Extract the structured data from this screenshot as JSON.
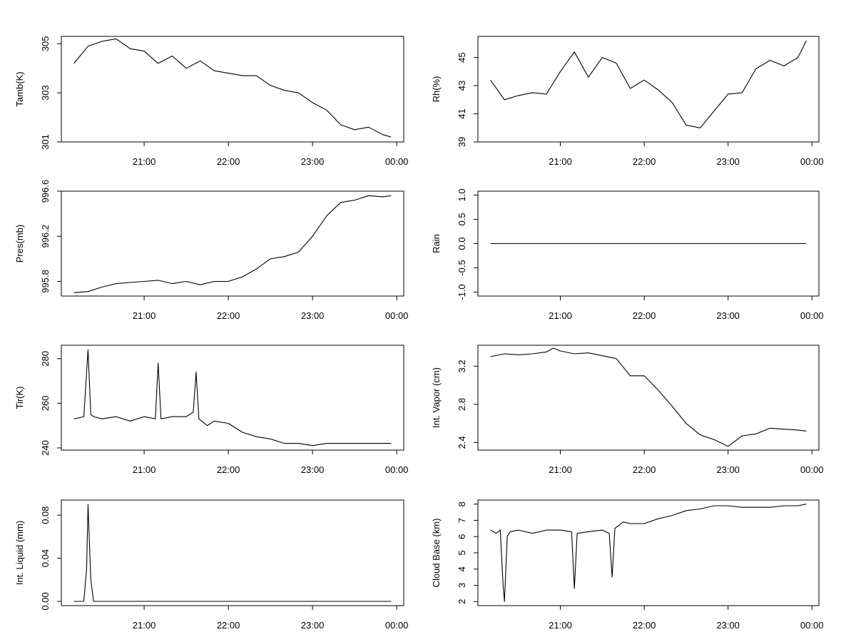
{
  "chart_data": [
    {
      "type": "line",
      "ylabel": "Tamb(K)",
      "x_ticks": [
        "21:00",
        "22:00",
        "23:00",
        "00:00"
      ],
      "y_ticks": [
        301,
        303,
        305
      ],
      "ylim": [
        301,
        305.3
      ],
      "x": [
        "20:10",
        "20:20",
        "20:30",
        "20:40",
        "20:50",
        "21:00",
        "21:10",
        "21:20",
        "21:30",
        "21:40",
        "21:50",
        "22:00",
        "22:10",
        "22:20",
        "22:30",
        "22:40",
        "22:50",
        "23:00",
        "23:10",
        "23:20",
        "23:30",
        "23:40",
        "23:50",
        "23:56"
      ],
      "values": [
        304.2,
        304.9,
        305.1,
        305.2,
        304.8,
        304.7,
        304.2,
        304.5,
        304.0,
        304.3,
        303.9,
        303.8,
        303.7,
        303.7,
        303.3,
        303.1,
        303.0,
        302.6,
        302.3,
        301.7,
        301.5,
        301.6,
        301.3,
        301.2
      ]
    },
    {
      "type": "line",
      "ylabel": "Rh(%)",
      "x_ticks": [
        "21:00",
        "22:00",
        "23:00",
        "00:00"
      ],
      "y_ticks": [
        39,
        41,
        43,
        45
      ],
      "ylim": [
        39,
        46.5
      ],
      "x": [
        "20:10",
        "20:20",
        "20:30",
        "20:40",
        "20:50",
        "21:00",
        "21:10",
        "21:20",
        "21:30",
        "21:40",
        "21:50",
        "22:00",
        "22:10",
        "22:20",
        "22:30",
        "22:40",
        "22:50",
        "23:00",
        "23:10",
        "23:20",
        "23:30",
        "23:40",
        "23:50",
        "23:56"
      ],
      "values": [
        43.4,
        42.0,
        42.3,
        42.5,
        42.4,
        44.0,
        45.4,
        43.6,
        45.0,
        44.6,
        42.8,
        43.4,
        42.7,
        41.8,
        40.2,
        40.0,
        41.2,
        42.4,
        42.5,
        44.2,
        44.8,
        44.4,
        45.0,
        46.2
      ]
    },
    {
      "type": "line",
      "ylabel": "Pres(mb)",
      "x_ticks": [
        "21:00",
        "22:00",
        "23:00",
        "00:00"
      ],
      "y_ticks": [
        "995.8",
        "996.2",
        "996.6"
      ],
      "ylim": [
        995.67,
        996.6
      ],
      "x": [
        "20:10",
        "20:20",
        "20:30",
        "20:40",
        "20:50",
        "21:00",
        "21:10",
        "21:20",
        "21:30",
        "21:40",
        "21:50",
        "22:00",
        "22:10",
        "22:20",
        "22:30",
        "22:40",
        "22:50",
        "23:00",
        "23:10",
        "23:20",
        "23:30",
        "23:40",
        "23:50",
        "23:56"
      ],
      "values": [
        995.7,
        995.71,
        995.75,
        995.78,
        995.79,
        995.8,
        995.81,
        995.78,
        995.8,
        995.77,
        995.8,
        995.8,
        995.84,
        995.91,
        996.0,
        996.02,
        996.06,
        996.2,
        996.38,
        996.5,
        996.52,
        996.56,
        996.55,
        996.56
      ]
    },
    {
      "type": "line",
      "ylabel": "Rain",
      "x_ticks": [
        "21:00",
        "22:00",
        "23:00",
        "00:00"
      ],
      "y_ticks": [
        "-1.0",
        "-0.5",
        "0.0",
        "0.5",
        "1.0"
      ],
      "ylim": [
        -1.08,
        1.08
      ],
      "x": [
        "20:10",
        "23:56"
      ],
      "values": [
        0.0,
        0.0
      ]
    },
    {
      "type": "line",
      "ylabel": "Tir(K)",
      "x_ticks": [
        "21:00",
        "22:00",
        "23:00",
        "00:00"
      ],
      "y_ticks": [
        240,
        260,
        280
      ],
      "ylim": [
        239,
        286
      ],
      "x": [
        "20:10",
        "20:17",
        "20:20",
        "20:22",
        "20:24",
        "20:30",
        "20:40",
        "20:50",
        "21:00",
        "21:08",
        "21:10",
        "21:12",
        "21:20",
        "21:30",
        "21:35",
        "21:37",
        "21:39",
        "21:45",
        "21:50",
        "22:00",
        "22:10",
        "22:20",
        "22:30",
        "22:40",
        "22:50",
        "23:00",
        "23:10",
        "23:20",
        "23:30",
        "23:40",
        "23:50",
        "23:56"
      ],
      "values": [
        253,
        254,
        284,
        255,
        254,
        253,
        254,
        252,
        254,
        253,
        278,
        253,
        254,
        254,
        256,
        274,
        253,
        250,
        252,
        251,
        247,
        245,
        244,
        242,
        242,
        241,
        242,
        242,
        242,
        242,
        242,
        242
      ]
    },
    {
      "type": "line",
      "ylabel": "Int. Vapor (cm)",
      "x_ticks": [
        "21:00",
        "22:00",
        "23:00",
        "00:00"
      ],
      "y_ticks": [
        "2.4",
        "2.8",
        "3.2"
      ],
      "ylim": [
        2.32,
        3.42
      ],
      "x": [
        "20:10",
        "20:20",
        "20:30",
        "20:40",
        "20:50",
        "20:55",
        "21:00",
        "21:10",
        "21:20",
        "21:30",
        "21:40",
        "21:50",
        "22:00",
        "22:10",
        "22:20",
        "22:30",
        "22:40",
        "22:50",
        "23:00",
        "23:10",
        "23:20",
        "23:30",
        "23:40",
        "23:50",
        "23:56"
      ],
      "values": [
        3.3,
        3.33,
        3.32,
        3.33,
        3.35,
        3.39,
        3.36,
        3.33,
        3.34,
        3.31,
        3.28,
        3.1,
        3.1,
        2.95,
        2.78,
        2.6,
        2.48,
        2.43,
        2.36,
        2.47,
        2.49,
        2.55,
        2.54,
        2.53,
        2.52
      ]
    },
    {
      "type": "line",
      "ylabel": "Int. Liquid (mm)",
      "x_ticks": [
        "21:00",
        "22:00",
        "23:00",
        "00:00"
      ],
      "y_ticks": [
        "0.00",
        "0.04",
        "0.08"
      ],
      "ylim": [
        -0.004,
        0.094
      ],
      "x": [
        "20:10",
        "20:17",
        "20:19",
        "20:20",
        "20:22",
        "20:24",
        "21:00",
        "22:00",
        "23:00",
        "23:56"
      ],
      "values": [
        0.0,
        0.0,
        0.03,
        0.09,
        0.02,
        0.0,
        0.0,
        0.0,
        0.0,
        0.0
      ]
    },
    {
      "type": "line",
      "ylabel": "Cloud Base (km)",
      "x_ticks": [
        "21:00",
        "22:00",
        "23:00",
        "00:00"
      ],
      "y_ticks": [
        2,
        3,
        4,
        5,
        6,
        7,
        8
      ],
      "ylim": [
        1.75,
        8.25
      ],
      "x": [
        "20:10",
        "20:14",
        "20:17",
        "20:19",
        "20:20",
        "20:22",
        "20:24",
        "20:30",
        "20:40",
        "20:50",
        "21:00",
        "21:08",
        "21:10",
        "21:12",
        "21:20",
        "21:30",
        "21:35",
        "21:37",
        "21:39",
        "21:45",
        "21:50",
        "22:00",
        "22:10",
        "22:20",
        "22:30",
        "22:40",
        "22:50",
        "23:00",
        "23:10",
        "23:20",
        "23:30",
        "23:40",
        "23:50",
        "23:56"
      ],
      "values": [
        6.4,
        6.2,
        6.4,
        3.0,
        2.0,
        6.0,
        6.3,
        6.4,
        6.2,
        6.4,
        6.4,
        6.3,
        2.8,
        6.2,
        6.3,
        6.4,
        6.2,
        3.5,
        6.5,
        6.9,
        6.8,
        6.8,
        7.1,
        7.3,
        7.6,
        7.7,
        7.9,
        7.9,
        7.8,
        7.8,
        7.8,
        7.9,
        7.9,
        8.0
      ]
    }
  ]
}
